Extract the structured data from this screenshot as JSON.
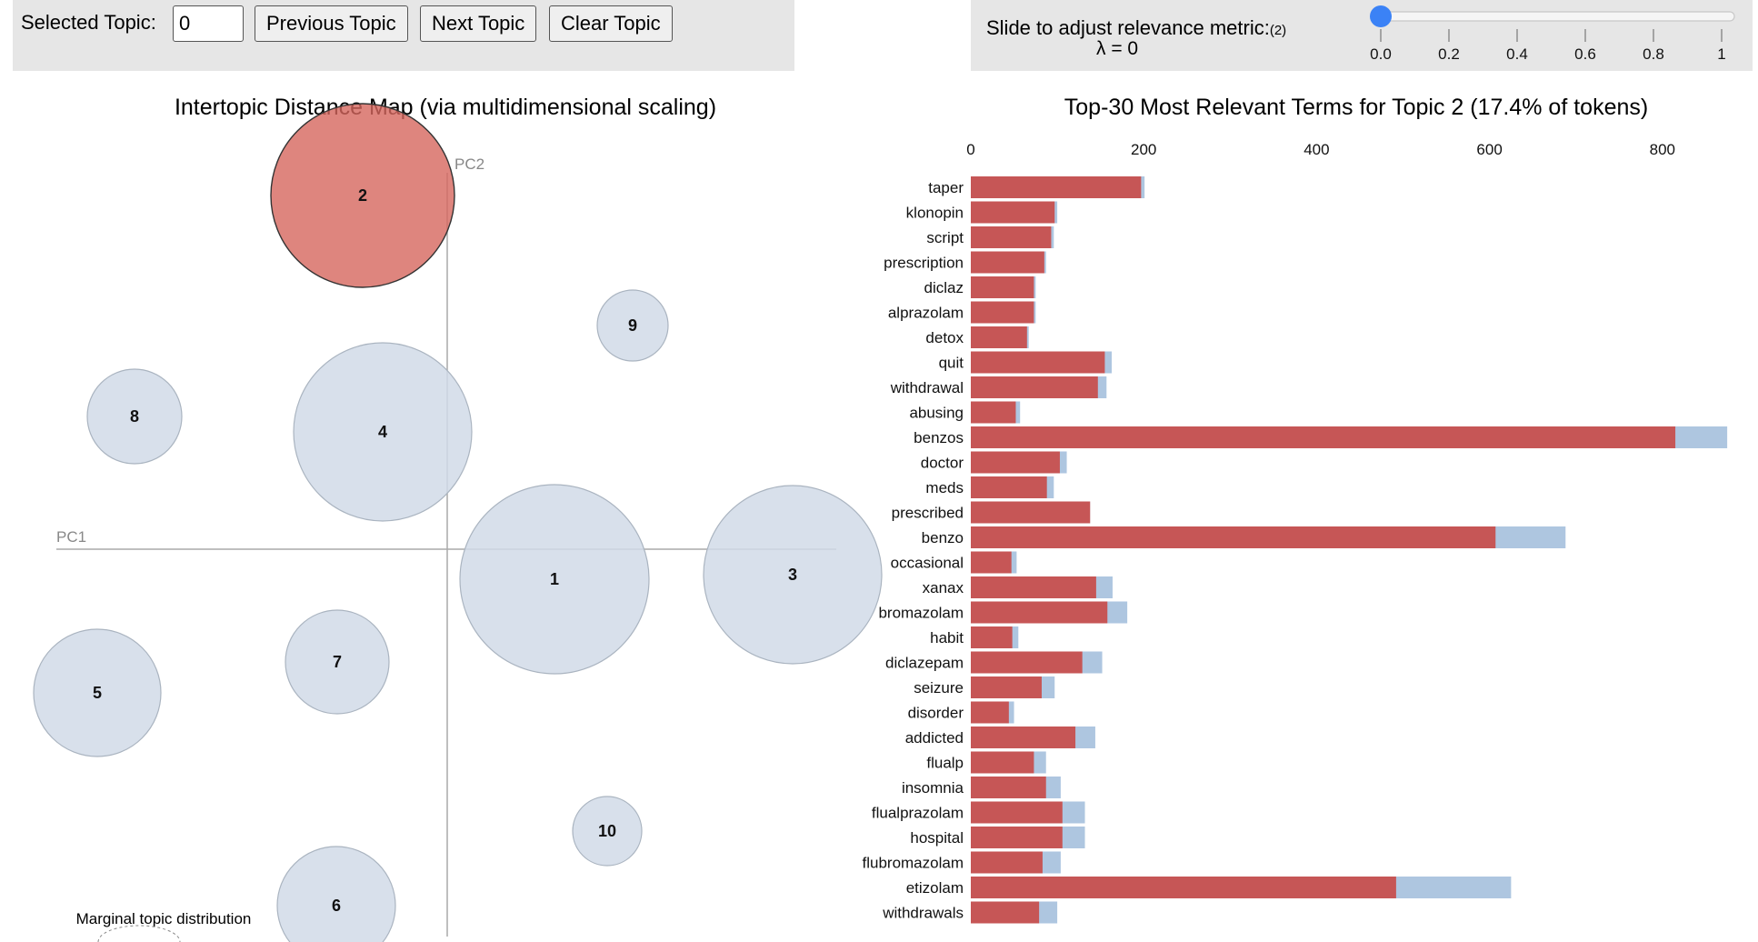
{
  "controls": {
    "selected_topic_label": "Selected Topic:",
    "selected_topic_value": "0",
    "previous_label": "Previous Topic",
    "next_label": "Next Topic",
    "clear_label": "Clear Topic"
  },
  "relevance": {
    "label": "Slide to adjust relevance metric:",
    "footnote": "(2)",
    "lambda_text": "λ = 0",
    "lambda_value": 0,
    "ticks": [
      "0.0",
      "0.2",
      "0.4",
      "0.6",
      "0.8",
      "1"
    ]
  },
  "map": {
    "title": "Intertopic Distance Map (via multidimensional scaling)",
    "pc1_label": "PC1",
    "pc2_label": "PC2",
    "marginal_label": "Marginal topic distribution",
    "selected_topic": "2",
    "topics": [
      "1",
      "2",
      "3",
      "4",
      "5",
      "6",
      "7",
      "8",
      "9",
      "10"
    ]
  },
  "bar_panel": {
    "title": "Top-30 Most Relevant Terms for Topic 2 (17.4% of tokens)"
  },
  "colors": {
    "selected_topic": "#d6665e",
    "topic_bubble": "#d1dbe8",
    "estimated_term_frequency": "#c65656",
    "overall_term_frequency": "#aec6e0",
    "control_background": "#e6e6e6",
    "slider_handle": "#3b82f6"
  },
  "chart_data": {
    "type": "bar",
    "orientation": "horizontal",
    "title": "Top-30 Most Relevant Terms for Topic 2 (17.4% of tokens)",
    "xlim": [
      0,
      880
    ],
    "x_ticks": [
      "0",
      "200",
      "400",
      "600",
      "800"
    ],
    "categories": [
      "taper",
      "klonopin",
      "script",
      "prescription",
      "diclaz",
      "alprazolam",
      "detox",
      "quit",
      "withdrawal",
      "abusing",
      "benzos",
      "doctor",
      "meds",
      "prescribed",
      "benzo",
      "occasional",
      "xanax",
      "bromazolam",
      "habit",
      "diclazepam",
      "seizure",
      "disorder",
      "addicted",
      "flualp",
      "insomnia",
      "flualprazolam",
      "hospital",
      "flubromazolam",
      "etizolam",
      "withdrawals"
    ],
    "series": [
      {
        "values": [
          201,
          100,
          96,
          87,
          75,
          75,
          67,
          163,
          157,
          57,
          875,
          111,
          96,
          138,
          688,
          53,
          164,
          181,
          55,
          152,
          97,
          50,
          144,
          87,
          104,
          132,
          132,
          104,
          625,
          100
        ]
      },
      {
        "values": [
          197,
          97,
          93,
          85,
          73,
          73,
          65,
          155,
          147,
          52,
          815,
          103,
          88,
          138,
          607,
          47,
          145,
          158,
          48,
          129,
          82,
          44,
          121,
          73,
          87,
          106,
          106,
          83,
          492,
          79
        ]
      }
    ]
  }
}
